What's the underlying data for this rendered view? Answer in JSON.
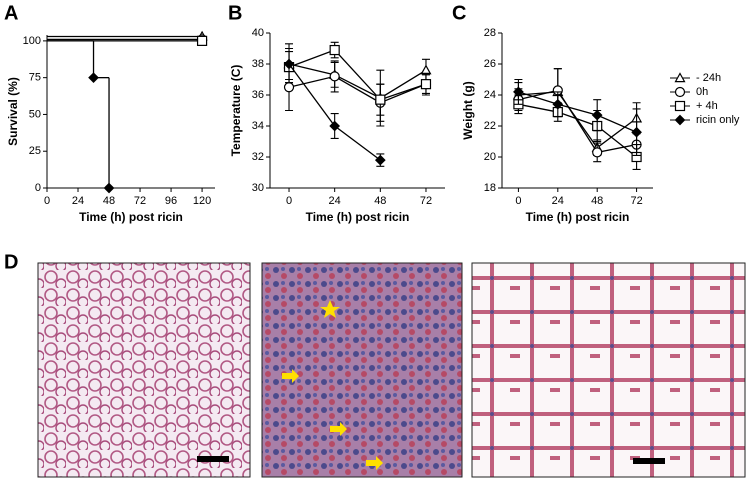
{
  "chart_data": [
    {
      "type": "line",
      "panel": "A",
      "ylabel": "Survival (%)",
      "xlabel": "Time (h) post ricin",
      "step": true,
      "xlim": [
        0,
        130
      ],
      "xticks": [
        0,
        24,
        48,
        72,
        96,
        120
      ],
      "ylim": [
        0,
        104
      ],
      "yticks": [
        0,
        25,
        50,
        75,
        100
      ],
      "series": [
        {
          "marker": "triangle",
          "color": "#000000",
          "x": [
            0,
            120
          ],
          "values": [
            103,
            103
          ]
        },
        {
          "marker": "circle",
          "color": "#000000",
          "x": [
            0,
            120
          ],
          "values": [
            101,
            101
          ]
        },
        {
          "marker": "square",
          "color": "#000000",
          "x": [
            0,
            120
          ],
          "values": [
            100,
            100
          ]
        },
        {
          "marker": "diamond",
          "color": "#000000",
          "x": [
            0,
            36,
            48
          ],
          "values": [
            100,
            75,
            0
          ]
        }
      ]
    },
    {
      "type": "line",
      "panel": "B",
      "ylabel": "Temperature (C)",
      "xlabel": "Time (h) post ricin",
      "xlim": [
        -10,
        82
      ],
      "xticks": [
        0,
        24,
        48,
        72
      ],
      "ylim": [
        30,
        40
      ],
      "yticks": [
        30,
        32,
        34,
        36,
        38,
        40
      ],
      "series": [
        {
          "marker": "triangle",
          "color": "#000000",
          "x": [
            0,
            24,
            48,
            72
          ],
          "values": [
            38.0,
            37.3,
            35.8,
            37.6
          ],
          "errors": [
            1.3,
            0.8,
            1.8,
            0.7
          ]
        },
        {
          "marker": "circle",
          "color": "#000000",
          "x": [
            0,
            24,
            48,
            72
          ],
          "values": [
            36.5,
            37.2,
            35.5,
            36.7
          ],
          "errors": [
            1.5,
            1.0,
            1.2,
            0.6
          ]
        },
        {
          "marker": "square",
          "color": "#000000",
          "x": [
            0,
            24,
            48,
            72
          ],
          "values": [
            37.8,
            38.9,
            35.7,
            36.7
          ],
          "errors": [
            1.0,
            0.5,
            1.0,
            0.7
          ]
        },
        {
          "marker": "diamond",
          "color": "#000000",
          "x": [
            0,
            24,
            48
          ],
          "values": [
            38.0,
            34.0,
            31.8
          ],
          "errors": [
            1.0,
            0.8,
            0.4
          ]
        }
      ]
    },
    {
      "type": "line",
      "panel": "C",
      "ylabel": "Weight (g)",
      "xlabel": "Time (h) post ricin",
      "legend": "right",
      "xlim": [
        -10,
        82
      ],
      "xticks": [
        0,
        24,
        48,
        72
      ],
      "ylim": [
        18,
        28
      ],
      "yticks": [
        18,
        20,
        22,
        24,
        26,
        28
      ],
      "series": [
        {
          "name": "- 24h",
          "marker": "triangle",
          "color": "#000000",
          "x": [
            0,
            24,
            48,
            72
          ],
          "values": [
            24.0,
            24.2,
            20.6,
            22.5
          ],
          "errors": [
            0.8,
            1.5,
            0.5,
            1.0
          ]
        },
        {
          "name": "0h",
          "marker": "circle",
          "color": "#000000",
          "x": [
            0,
            24,
            48,
            72
          ],
          "values": [
            23.7,
            24.3,
            20.3,
            20.8
          ],
          "errors": [
            0.7,
            1.4,
            0.6,
            0.8
          ]
        },
        {
          "name": "+ 4h",
          "marker": "square",
          "color": "#000000",
          "x": [
            0,
            24,
            48,
            72
          ],
          "values": [
            23.4,
            22.9,
            22.0,
            20.0
          ],
          "errors": [
            0.6,
            0.6,
            1.0,
            0.8
          ]
        },
        {
          "name": "ricin only",
          "marker": "diamond",
          "color": "#000000",
          "x": [
            0,
            24,
            48,
            72
          ],
          "values": [
            24.2,
            23.4,
            22.7,
            21.6
          ],
          "errors": [
            0.8,
            0.8,
            1.0,
            1.5
          ]
        }
      ]
    }
  ],
  "figure": {
    "panel": "D"
  }
}
